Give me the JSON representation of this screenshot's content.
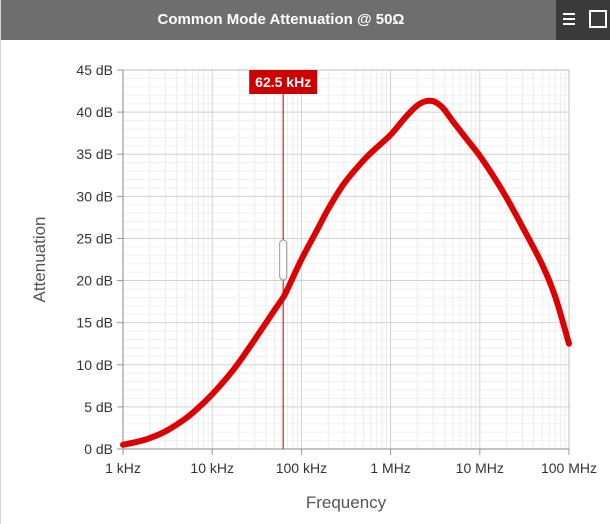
{
  "header": {
    "title": "Common Mode Attenuation @ 50Ω",
    "menu_icon": "hamburger-menu-icon",
    "expand_icon": "fullscreen-icon"
  },
  "chart_data": {
    "type": "line",
    "xlabel": "Frequency",
    "ylabel": "Attenuation",
    "x_scale": "log",
    "xlim": [
      1000,
      100000000
    ],
    "ylim": [
      0,
      45
    ],
    "grid": true,
    "x_tick_values": [
      1000,
      10000,
      100000,
      1000000,
      10000000,
      100000000
    ],
    "x_tick_labels": [
      "1 kHz",
      "10 kHz",
      "100 kHz",
      "1 MHz",
      "10 MHz",
      "100 MHz"
    ],
    "y_tick_values": [
      0,
      5,
      10,
      15,
      20,
      25,
      30,
      35,
      40,
      45
    ],
    "y_tick_labels": [
      "0 dB",
      "5 dB",
      "10 dB",
      "15 dB",
      "20 dB",
      "25 dB",
      "30 dB",
      "35 dB",
      "40 dB",
      "45 dB"
    ],
    "series": [
      {
        "color": "#dd0000",
        "x": [
          1000,
          1500,
          2000,
          3000,
          5000,
          7000,
          10000,
          15000,
          20000,
          30000,
          50000,
          62500,
          70000,
          100000,
          150000,
          200000,
          300000,
          500000,
          700000,
          1000000,
          1500000,
          2000000,
          2500000,
          3000000,
          3500000,
          4000000,
          5000000,
          7000000,
          10000000,
          15000000,
          20000000,
          30000000,
          50000000,
          70000000,
          100000000
        ],
        "y": [
          0.5,
          0.9,
          1.3,
          2.1,
          3.6,
          4.9,
          6.5,
          8.6,
          10.3,
          13.0,
          16.5,
          18.0,
          19.0,
          22.5,
          26.0,
          28.5,
          31.5,
          34.3,
          35.8,
          37.3,
          39.5,
          40.8,
          41.3,
          41.3,
          40.9,
          40.3,
          38.9,
          36.9,
          34.8,
          32.0,
          29.8,
          26.4,
          21.9,
          18.1,
          12.5
        ]
      }
    ],
    "marker": {
      "x": 62500,
      "label": "62.5 kHz",
      "color": "#cc0000"
    }
  }
}
